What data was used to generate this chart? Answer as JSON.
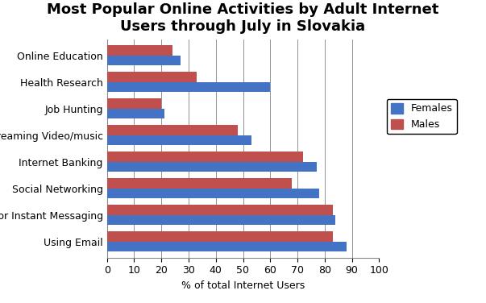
{
  "title": "Most Popular Online Activities by Adult Internet\nUsers through July in Slovakia",
  "categories": [
    "Using Email",
    "Text or Instant Messaging",
    "Social Networking",
    "Internet Banking",
    "Streaming Video/music",
    "Job Hunting",
    "Health Research",
    "Online Education"
  ],
  "females": [
    88,
    84,
    78,
    77,
    53,
    21,
    60,
    27
  ],
  "males": [
    83,
    83,
    68,
    72,
    48,
    20,
    33,
    24
  ],
  "female_color": "#4472C4",
  "male_color": "#C0504D",
  "xlabel": "% of total Internet Users",
  "xlim": [
    0,
    100
  ],
  "xticks": [
    0,
    10,
    20,
    30,
    40,
    50,
    60,
    70,
    80,
    90,
    100
  ],
  "bar_height": 0.38,
  "legend_labels": [
    "Females",
    "Males"
  ],
  "figsize": [
    6.03,
    3.76
  ],
  "dpi": 100,
  "title_fontsize": 13,
  "axis_fontsize": 9,
  "label_fontsize": 9
}
